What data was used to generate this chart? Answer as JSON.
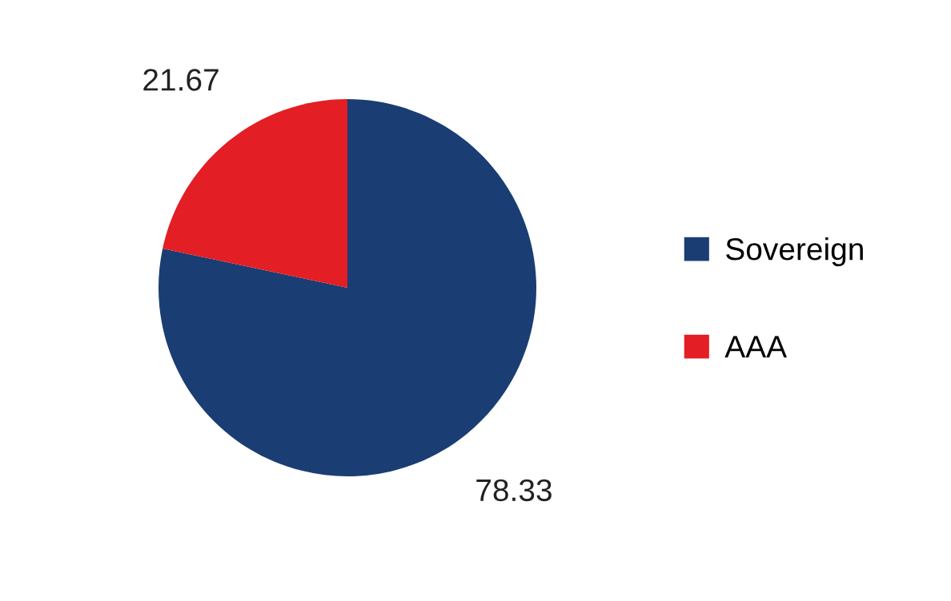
{
  "chart_data": {
    "type": "pie",
    "categories": [
      "Sovereign",
      "AAA"
    ],
    "values": [
      78.33,
      21.67
    ],
    "colors": [
      "#1a3d73",
      "#e31e24"
    ],
    "data_labels": true,
    "legend": "right"
  }
}
